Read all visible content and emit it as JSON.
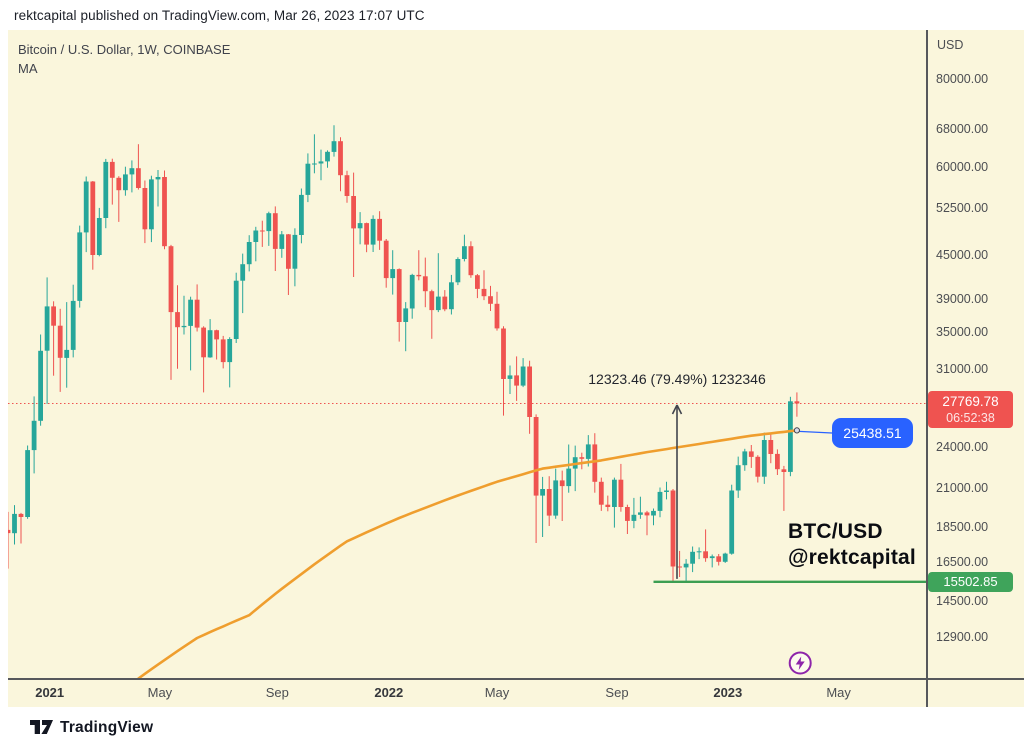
{
  "attribution": {
    "text": "rektcapital published on TradingView.com, Mar 26, 2023 17:07 UTC"
  },
  "header": {
    "symbol_title": "Bitcoin / U.S. Dollar, 1W, COINBASE",
    "indicator_label": "MA"
  },
  "price_axis": {
    "currency_label": "USD",
    "ticks": [
      {
        "label": "80000.00",
        "price": 80000
      },
      {
        "label": "68000.00",
        "price": 68000
      },
      {
        "label": "60000.00",
        "price": 60000
      },
      {
        "label": "52500.00",
        "price": 52500
      },
      {
        "label": "45000.00",
        "price": 45000
      },
      {
        "label": "39000.00",
        "price": 39000
      },
      {
        "label": "35000.00",
        "price": 35000
      },
      {
        "label": "31000.00",
        "price": 31000
      },
      {
        "label": "24000.00",
        "price": 24000
      },
      {
        "label": "21000.00",
        "price": 21000
      },
      {
        "label": "18500.00",
        "price": 18500
      },
      {
        "label": "16500.00",
        "price": 16500
      },
      {
        "label": "14500.00",
        "price": 14500
      },
      {
        "label": "12900.00",
        "price": 12900
      }
    ]
  },
  "time_axis": {
    "ticks": [
      {
        "label": "2021",
        "week": 6.4,
        "major": true
      },
      {
        "label": "May",
        "week": 23.3,
        "major": false
      },
      {
        "label": "Sep",
        "week": 41.3,
        "major": false
      },
      {
        "label": "2022",
        "week": 58.4,
        "major": true
      },
      {
        "label": "May",
        "week": 75.0,
        "major": false
      },
      {
        "label": "Sep",
        "week": 93.4,
        "major": false
      },
      {
        "label": "2023",
        "week": 110.4,
        "major": true
      },
      {
        "label": "May",
        "week": 127.4,
        "major": false
      }
    ]
  },
  "badges": {
    "last_price": {
      "value": "27769.78",
      "countdown": "06:52:38",
      "color": "#ef5350"
    },
    "ma_value": {
      "value": "25438.51",
      "color": "#2962ff"
    },
    "support": {
      "value": "15502.85",
      "color": "#3fa45b"
    }
  },
  "annotations": {
    "measure_label": "12323.46 (79.49%) 1232346",
    "watermark_line1": "BTC/USD",
    "watermark_line2": "@rektcapital"
  },
  "footer": {
    "brand": "TradingView"
  },
  "chart_data": {
    "type": "candlestick",
    "symbol": "BTC/USD",
    "timeframe": "1W",
    "exchange": "COINBASE",
    "price_scale": "log",
    "background": "#faf6dc",
    "up_color": "#26a69a",
    "down_color": "#ef5350",
    "ylim": [
      11200,
      86000
    ],
    "candles_note": "weekly OHLC, first bar late Nov 2020, last bar week of Mar 20 2023",
    "candles": [
      [
        18370,
        19484,
        16188,
        18177
      ],
      [
        18177,
        19920,
        17515,
        19359
      ],
      [
        19359,
        19420,
        17572,
        19164
      ],
      [
        19164,
        24209,
        19050,
        23850
      ],
      [
        23850,
        28422,
        22100,
        26250
      ],
      [
        26250,
        34800,
        25830,
        33000
      ],
      [
        33000,
        41950,
        27734,
        38150
      ],
      [
        38150,
        38800,
        30420,
        35820
      ],
      [
        35820,
        37850,
        28850,
        32250
      ],
      [
        32250,
        38700,
        29250,
        33100
      ],
      [
        33100,
        40955,
        32296,
        38850
      ],
      [
        38850,
        49700,
        38000,
        48600
      ],
      [
        48600,
        58350,
        45570,
        57400
      ],
      [
        57400,
        57500,
        43015,
        45140
      ],
      [
        45140,
        52650,
        44950,
        50950
      ],
      [
        50950,
        61800,
        49274,
        61200
      ],
      [
        61200,
        61850,
        53221,
        58100
      ],
      [
        58100,
        58400,
        50305,
        55800
      ],
      [
        55800,
        60250,
        54800,
        58750
      ],
      [
        58750,
        61500,
        55400,
        59950
      ],
      [
        59950,
        64854,
        55900,
        56200
      ],
      [
        56200,
        57600,
        46930,
        49100
      ],
      [
        49100,
        58500,
        47080,
        57800
      ],
      [
        57800,
        59600,
        52900,
        58250
      ],
      [
        58250,
        59500,
        46000,
        46450
      ],
      [
        46450,
        46650,
        30000,
        37450
      ],
      [
        37450,
        40900,
        31111,
        35650
      ],
      [
        35650,
        39500,
        34805,
        35800
      ],
      [
        35800,
        39380,
        30950,
        39000
      ],
      [
        39000,
        41000,
        35152,
        35600
      ],
      [
        35600,
        35750,
        28805,
        32300
      ],
      [
        32300,
        36600,
        32250,
        35300
      ],
      [
        35300,
        35350,
        32077,
        34250
      ],
      [
        34250,
        34650,
        31150,
        31800
      ],
      [
        31800,
        34500,
        29278,
        34300
      ],
      [
        34300,
        42600,
        33850,
        41500
      ],
      [
        41500,
        45350,
        37332,
        43800
      ],
      [
        43800,
        48150,
        42780,
        47100
      ],
      [
        47100,
        49500,
        44217,
        48900
      ],
      [
        48900,
        50500,
        46350,
        48800
      ],
      [
        48800,
        52000,
        46500,
        51750
      ],
      [
        51750,
        52920,
        42843,
        46050
      ],
      [
        46050,
        48825,
        44722,
        48300
      ],
      [
        48300,
        48350,
        39600,
        43150
      ],
      [
        43150,
        49250,
        40750,
        48200
      ],
      [
        48200,
        56100,
        46905,
        54950
      ],
      [
        54950,
        62933,
        53657,
        60850
      ],
      [
        60850,
        66990,
        58963,
        60880
      ],
      [
        60880,
        63710,
        57653,
        61300
      ],
      [
        61300,
        63550,
        60050,
        63250
      ],
      [
        63250,
        68990,
        62278,
        65500
      ],
      [
        65500,
        66339,
        55600,
        58600
      ],
      [
        58600,
        59444,
        53556,
        54750
      ],
      [
        54750,
        59100,
        42000,
        49250
      ],
      [
        49250,
        51936,
        46751,
        50100
      ],
      [
        50100,
        50189,
        45558,
        46700
      ],
      [
        46700,
        51400,
        45576,
        50800
      ],
      [
        50800,
        52088,
        45900,
        47300
      ],
      [
        47300,
        47570,
        40555,
        41850
      ],
      [
        41850,
        45855,
        39650,
        43100
      ],
      [
        43100,
        43200,
        34008,
        36250
      ],
      [
        36250,
        38700,
        32950,
        37900
      ],
      [
        37900,
        42450,
        36655,
        42300
      ],
      [
        42300,
        45850,
        41550,
        42100
      ],
      [
        42100,
        44750,
        38050,
        40100
      ],
      [
        40100,
        40300,
        34322,
        37700
      ],
      [
        37700,
        45400,
        37450,
        39400
      ],
      [
        39400,
        40250,
        37555,
        37800
      ],
      [
        37800,
        42300,
        37155,
        41280
      ],
      [
        41280,
        44795,
        40910,
        44550
      ],
      [
        44550,
        48240,
        44200,
        46450
      ],
      [
        46450,
        47200,
        41900,
        42250
      ],
      [
        42250,
        42420,
        39200,
        40400
      ],
      [
        40400,
        42950,
        38950,
        39450
      ],
      [
        39450,
        40800,
        37580,
        38480
      ],
      [
        38480,
        40025,
        35250,
        35500
      ],
      [
        35500,
        35750,
        26700,
        30100
      ],
      [
        30100,
        31450,
        28650,
        30450
      ],
      [
        30450,
        32400,
        28015,
        29450
      ],
      [
        29450,
        32222,
        29300,
        31350
      ],
      [
        31350,
        31950,
        25150,
        26575
      ],
      [
        26575,
        26800,
        17600,
        20550
      ],
      [
        20550,
        21850,
        17950,
        21000
      ],
      [
        21000,
        21900,
        18605,
        19250
      ],
      [
        19250,
        22450,
        19050,
        21600
      ],
      [
        21600,
        22300,
        18910,
        21200
      ],
      [
        21200,
        24290,
        20750,
        22450
      ],
      [
        22450,
        24200,
        20855,
        23300
      ],
      [
        23300,
        23650,
        22400,
        23175
      ],
      [
        23175,
        25050,
        22600,
        24300
      ],
      [
        24300,
        25200,
        20750,
        21500
      ],
      [
        21500,
        21800,
        19550,
        19950
      ],
      [
        19950,
        20550,
        19520,
        19800
      ],
      [
        19800,
        21800,
        18510,
        21650
      ],
      [
        21650,
        22799,
        19500,
        19800
      ],
      [
        19800,
        19950,
        18125,
        18920
      ],
      [
        18920,
        20400,
        18470,
        19300
      ],
      [
        19300,
        20475,
        19050,
        19450
      ],
      [
        19450,
        19550,
        18050,
        19260
      ],
      [
        19260,
        19700,
        18650,
        19550
      ],
      [
        19550,
        21100,
        19150,
        20800
      ],
      [
        20800,
        21500,
        20300,
        20900
      ],
      [
        20900,
        21000,
        15476,
        16300
      ],
      [
        16300,
        17150,
        15750,
        16250
      ],
      [
        16250,
        16700,
        15450,
        16450
      ],
      [
        16450,
        17400,
        16000,
        17100
      ],
      [
        17100,
        17350,
        16700,
        17130
      ],
      [
        17130,
        18400,
        16550,
        16750
      ],
      [
        16750,
        16950,
        16250,
        16850
      ],
      [
        16850,
        16980,
        16350,
        16550
      ],
      [
        16550,
        17050,
        16490,
        17000
      ],
      [
        17000,
        21300,
        16940,
        20900
      ],
      [
        20900,
        23350,
        20400,
        22700
      ],
      [
        22700,
        23950,
        22290,
        23750
      ],
      [
        23750,
        24250,
        22500,
        23330
      ],
      [
        23330,
        23450,
        21450,
        21860
      ],
      [
        21860,
        25250,
        21350,
        24650
      ],
      [
        24650,
        25100,
        22850,
        23550
      ],
      [
        23550,
        23900,
        21980,
        22400
      ],
      [
        22400,
        22650,
        19549,
        22200
      ],
      [
        22200,
        28390,
        21900,
        27970
      ],
      [
        27970,
        28800,
        26600,
        27769.78
      ]
    ],
    "ma_line": {
      "name": "MA",
      "color": "#ef9e2e",
      "current_value": 25438.51,
      "points": [
        [
          20,
          11300
        ],
        [
          24,
          12000
        ],
        [
          29,
          12900
        ],
        [
          37,
          13900
        ],
        [
          45,
          15900
        ],
        [
          52,
          17700
        ],
        [
          60,
          19100
        ],
        [
          68,
          20400
        ],
        [
          75,
          21500
        ],
        [
          82,
          22450
        ],
        [
          91,
          23060
        ],
        [
          98,
          23690
        ],
        [
          106,
          24330
        ],
        [
          114,
          25000
        ],
        [
          121,
          25438.51
        ]
      ]
    },
    "support_line": {
      "price": 15502.85,
      "start_week": 99,
      "color": "#3c9e52"
    },
    "last_price_line": {
      "price": 27769.78,
      "color": "#ef5350"
    },
    "measure_arrow": {
      "week": 102.6,
      "from_price": 15650,
      "to_price": 27769.78,
      "color": "#41454e"
    },
    "bolt_marker": {
      "week": 121.5,
      "color": "#8e24aa"
    }
  }
}
